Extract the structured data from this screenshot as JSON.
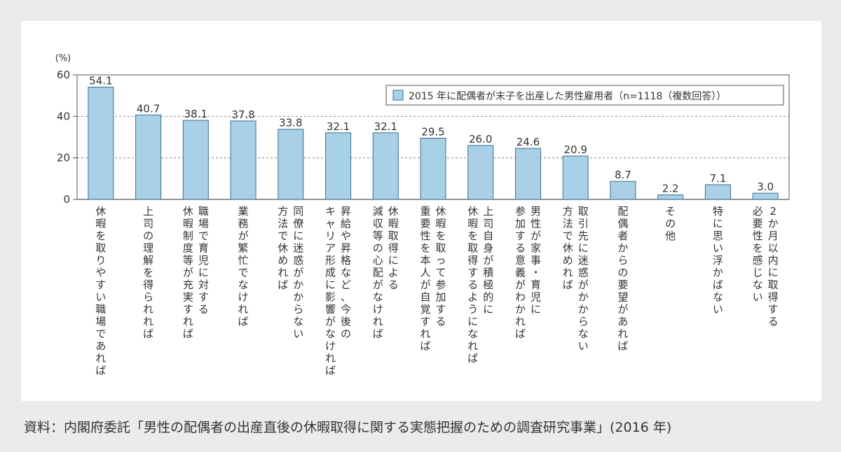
{
  "chart_data": {
    "type": "bar",
    "title": "",
    "xlabel": "",
    "ylabel": "(%)",
    "ylim": [
      0,
      60
    ],
    "yticks": [
      0,
      20,
      40,
      60
    ],
    "grid": "horizontal dashed",
    "legend_position": "top-right",
    "bar_color": "#a8d0e6",
    "bar_edge_color": "#3a6f94",
    "series": [
      {
        "name": "2015 年に配偶者が末子を出産した男性雇用者（n=1118（複数回答））",
        "values": [
          54.1,
          40.7,
          38.1,
          37.8,
          33.8,
          32.1,
          32.1,
          29.5,
          26.0,
          24.6,
          20.9,
          8.7,
          2.2,
          7.1,
          3.0
        ]
      }
    ],
    "categories": [
      "休暇を取りやすい職場であれば",
      "上司の理解を得られれば",
      "職場で育児に対する休暇制度等が充実すれば",
      "業務が繁忙でなければ",
      "同僚に迷惑がかからない方法で休めれば",
      "昇給や昇格など、今後のキャリア形成に影響がなければ",
      "休暇取得による減収等の心配がなければ",
      "休暇を取って参加する重要性を本人が自覚すれば",
      "上司自身が積極的に休暇を取得するようになれば",
      "男性が家事・育児に参加する意義がわかれば",
      "取引先に迷惑がかからない方法で休めれば",
      "配偶者からの要望があれば",
      "その他",
      "特に思い浮かばない",
      "2か月以内に取得する必要性を感じない"
    ],
    "category_lines": [
      [
        "休暇を取りやすい職場であれば"
      ],
      [
        "上司の理解を得られれば"
      ],
      [
        "職場で育児に対する",
        "休暇制度等が充実すれば"
      ],
      [
        "業務が繁忙でなければ"
      ],
      [
        "同僚に迷惑がかからない",
        "方法で休めれば"
      ],
      [
        "昇給や昇格など、今後の",
        "キャリア形成に影響がなければ"
      ],
      [
        "休暇取得による",
        "減収等の心配がなければ"
      ],
      [
        "休暇を取って参加する",
        "重要性を本人が自覚すれば"
      ],
      [
        "上司自身が積極的に",
        "休暇を取得するようになれば"
      ],
      [
        "男性が家事・育児に",
        "参加する意義がわかれば"
      ],
      [
        "取引先に迷惑がかからない",
        "方法で休めれば"
      ],
      [
        "配偶者からの要望があれば"
      ],
      [
        "その他"
      ],
      [
        "特に思い浮かばない"
      ],
      [
        "2か月以内に取得する",
        "必要性を感じない"
      ]
    ]
  },
  "source": "資料：内閣府委託「男性の配偶者の出産直後の休暇取得に関する実態把握のための調査研究事業」(2016 年)"
}
